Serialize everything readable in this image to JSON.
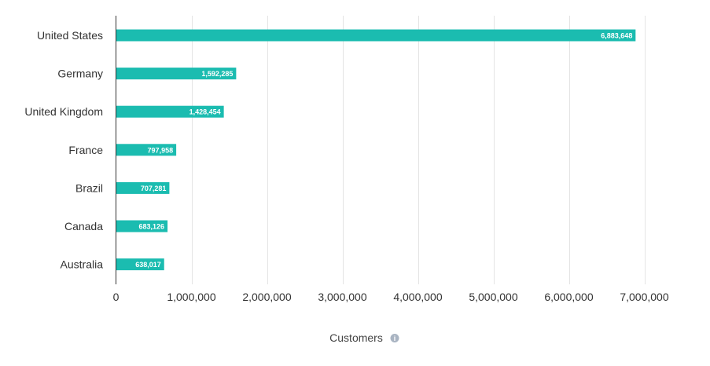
{
  "chart_data": {
    "type": "bar",
    "orientation": "horizontal",
    "categories": [
      "United States",
      "Germany",
      "United Kingdom",
      "France",
      "Brazil",
      "Canada",
      "Australia"
    ],
    "values": [
      6883648,
      1592285,
      1428454,
      797958,
      707281,
      683126,
      638017
    ],
    "value_labels": [
      "6,883,648",
      "1,592,285",
      "1,428,454",
      "797,958",
      "707,281",
      "683,126",
      "638,017"
    ],
    "xlim": [
      0,
      7000000
    ],
    "xticks": [
      0,
      1000000,
      2000000,
      3000000,
      4000000,
      5000000,
      6000000,
      7000000
    ],
    "xtick_labels": [
      "0",
      "1,000,000",
      "2,000,000",
      "3,000,000",
      "4,000,000",
      "5,000,000",
      "6,000,000",
      "7,000,000"
    ],
    "xlabel": "Customers",
    "ylabel": "",
    "title": "",
    "grid": true,
    "legend": "none",
    "colors": {
      "bar": "#1bbcb0",
      "grid": "#e4e4e4",
      "axis": "#333333",
      "info_icon": "#a9b4c2"
    },
    "icons": {
      "xlabel_info": "info-icon"
    }
  }
}
